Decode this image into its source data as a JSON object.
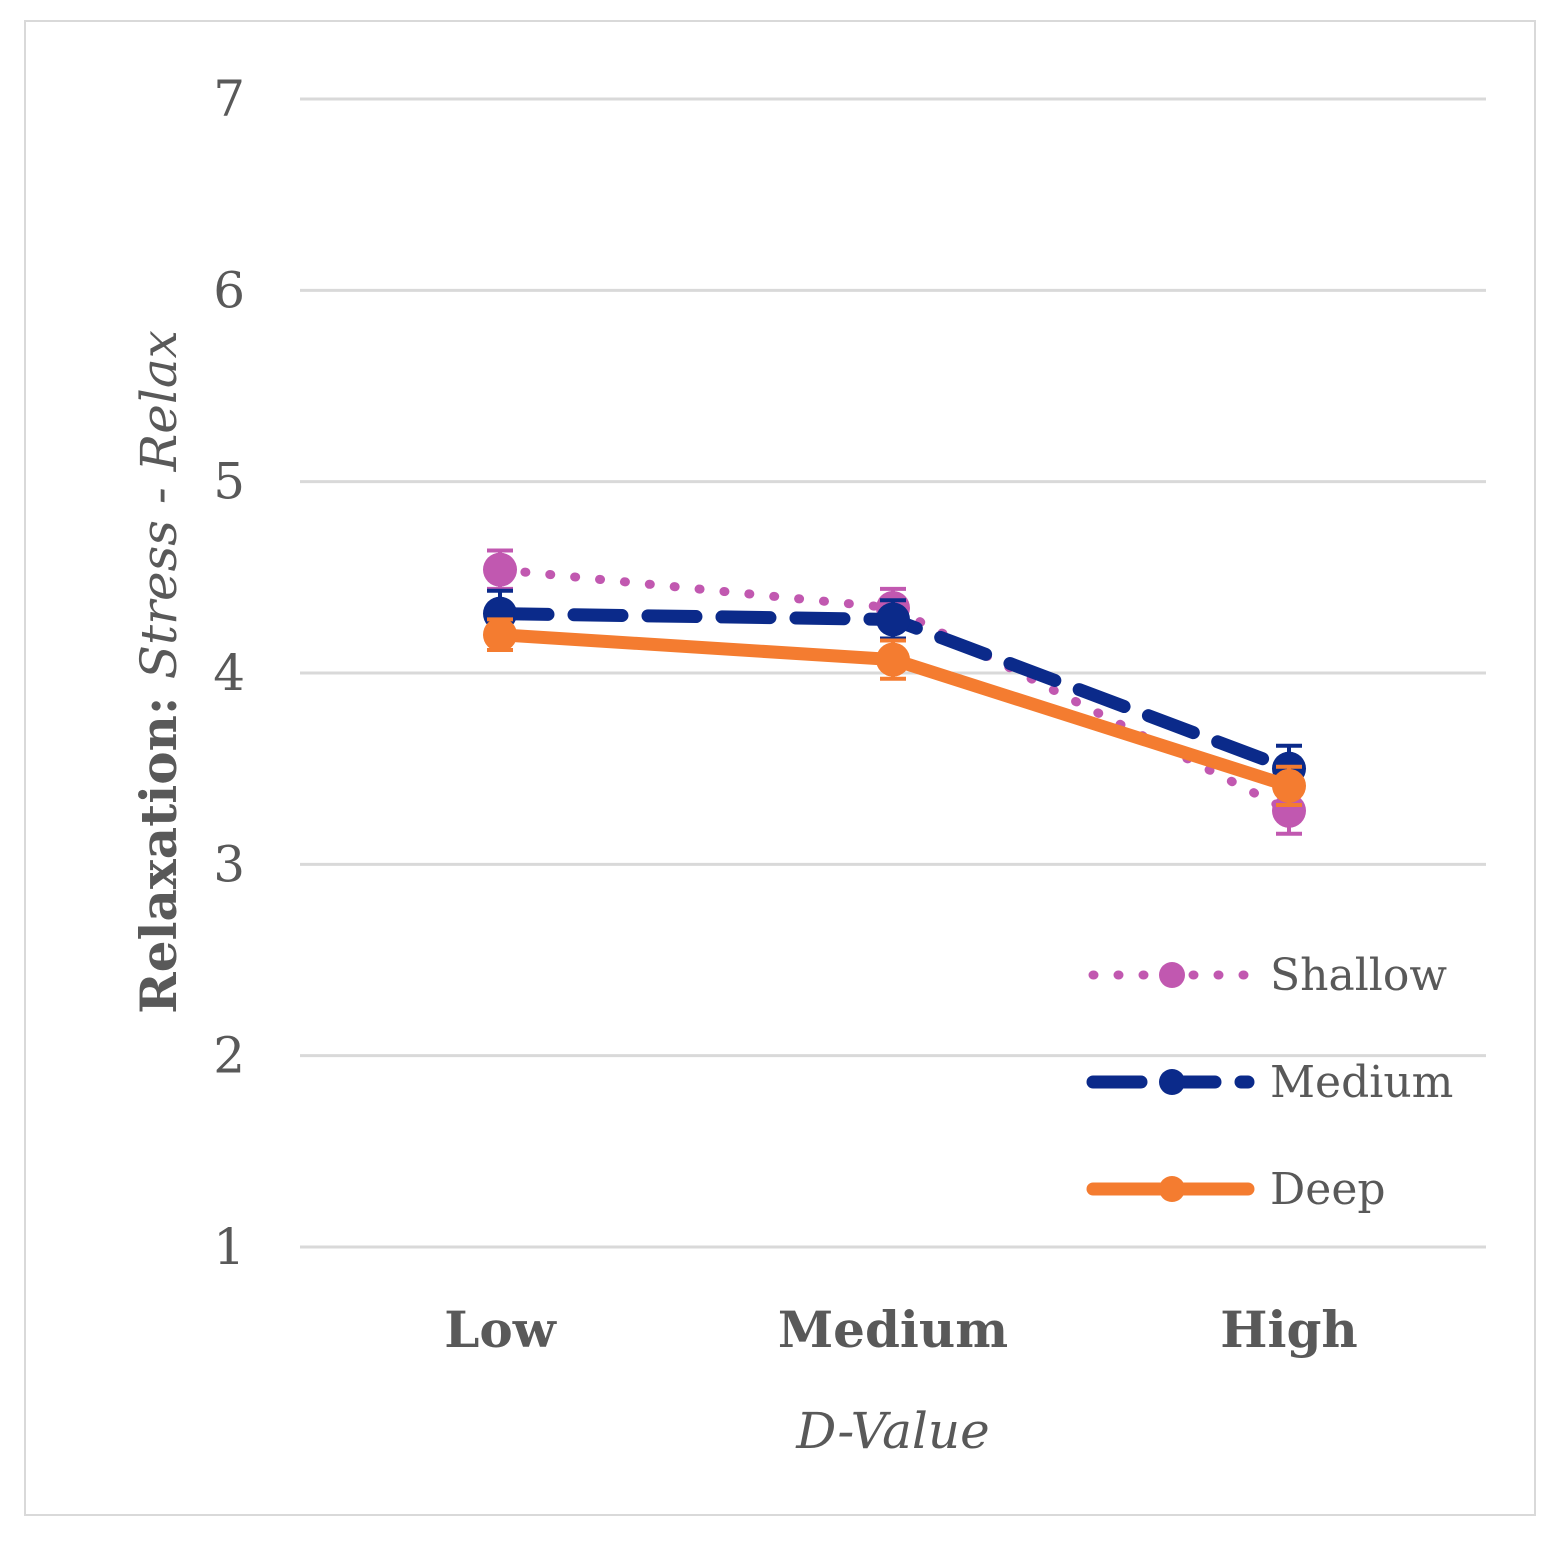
{
  "chart_data": {
    "type": "line",
    "categories": [
      "Low",
      "Medium",
      "High"
    ],
    "xlabel": "D-Value",
    "ylabel_bold": "Relaxation: ",
    "ylabel_italic": "Stress - Relax",
    "ylim": [
      1,
      7
    ],
    "yticks": [
      "1",
      "2",
      "3",
      "4",
      "5",
      "6",
      "7"
    ],
    "grid": true,
    "legend_position": "bottom-right",
    "series": [
      {
        "name": "Shallow",
        "values": [
          4.54,
          4.34,
          3.28
        ],
        "errors": [
          0.1,
          0.1,
          0.12
        ],
        "color": "#c158b0",
        "style": "dotted"
      },
      {
        "name": "Medium",
        "values": [
          4.31,
          4.28,
          3.5
        ],
        "errors": [
          0.12,
          0.1,
          0.12
        ],
        "color": "#0b2a8a",
        "style": "dashed"
      },
      {
        "name": "Deep",
        "values": [
          4.2,
          4.07,
          3.41
        ],
        "errors": [
          0.08,
          0.1,
          0.1
        ],
        "color": "#f47c30",
        "style": "solid"
      }
    ]
  }
}
